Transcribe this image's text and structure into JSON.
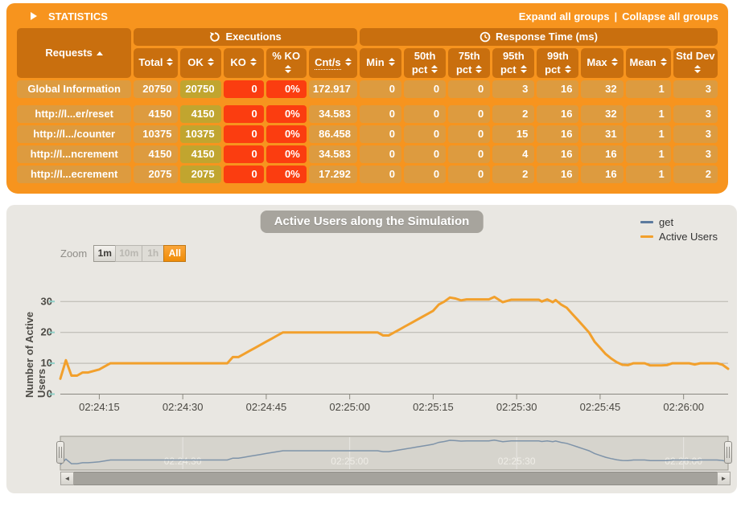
{
  "colors": {
    "panel_orange": "#f7941e",
    "header_cell": "#c96f0e",
    "row_cell": "#dd9b3f",
    "ok_cell": "#c1a52f",
    "ko_cell": "#fb3d10",
    "chart_bg": "#e9e7e2",
    "title_badge": "#a7a49d"
  },
  "icons": {
    "left_arrow": "◄",
    "right_arrow": "►"
  },
  "statistics": {
    "title": "STATISTICS",
    "expand_link": "Expand all groups",
    "link_separator": "|",
    "collapse_link": "Collapse all groups",
    "groups": {
      "executions": "Executions",
      "response_time": "Response Time (ms)"
    },
    "columns": {
      "requests": "Requests",
      "total": "Total",
      "ok": "OK",
      "ko": "KO",
      "pct_ko": "% KO",
      "cnt_s": "Cnt/s",
      "min": "Min",
      "p50": "50th pct",
      "p75": "75th pct",
      "p95": "95th pct",
      "p99": "99th pct",
      "max": "Max",
      "mean": "Mean",
      "std_dev": "Std Dev"
    },
    "rows": [
      {
        "label": "Global Information",
        "values": [
          "20750",
          "20750",
          "0",
          "0%",
          "172.917",
          "0",
          "0",
          "0",
          "3",
          "16",
          "32",
          "1",
          "3"
        ]
      },
      {
        "label": "http://l...er/reset",
        "values": [
          "4150",
          "4150",
          "0",
          "0%",
          "34.583",
          "0",
          "0",
          "0",
          "2",
          "16",
          "32",
          "1",
          "3"
        ]
      },
      {
        "label": "http://l.../counter",
        "values": [
          "10375",
          "10375",
          "0",
          "0%",
          "86.458",
          "0",
          "0",
          "0",
          "15",
          "16",
          "31",
          "1",
          "3"
        ]
      },
      {
        "label": "http://l...ncrement",
        "values": [
          "4150",
          "4150",
          "0",
          "0%",
          "34.583",
          "0",
          "0",
          "0",
          "4",
          "16",
          "16",
          "1",
          "3"
        ]
      },
      {
        "label": "http://l...ecrement",
        "values": [
          "2075",
          "2075",
          "0",
          "0%",
          "17.292",
          "0",
          "0",
          "0",
          "2",
          "16",
          "16",
          "1",
          "2"
        ]
      }
    ]
  },
  "chart": {
    "zoom_label": "Zoom",
    "zoom_buttons": [
      {
        "label": "1m",
        "state": "enabled"
      },
      {
        "label": "10m",
        "state": "disabled"
      },
      {
        "label": "1h",
        "state": "disabled"
      },
      {
        "label": "All",
        "state": "selected"
      }
    ]
  },
  "chart_data": {
    "type": "line",
    "title": "Active Users along the Simulation",
    "xlabel": "",
    "ylabel": "Number of Active Users",
    "x_tick_labels": [
      "02:24:15",
      "02:24:30",
      "02:24:45",
      "02:25:00",
      "02:25:15",
      "02:25:30",
      "02:25:45",
      "02:26:00"
    ],
    "x_tick_seconds": [
      15,
      30,
      45,
      60,
      75,
      90,
      105,
      120
    ],
    "x_domain_seconds": [
      8,
      128
    ],
    "y_ticks": [
      0,
      10,
      20,
      30
    ],
    "ylim": [
      0,
      35
    ],
    "grid": "horizontal",
    "legend_position": "top-right",
    "series": [
      {
        "name": "get",
        "color": "#5c7a9e",
        "points": []
      },
      {
        "name": "Active Users",
        "color": "#f2a02c",
        "points": [
          [
            8,
            5
          ],
          [
            9,
            11
          ],
          [
            10,
            6
          ],
          [
            11,
            6
          ],
          [
            12,
            7
          ],
          [
            13,
            7
          ],
          [
            14,
            7.5
          ],
          [
            15,
            8
          ],
          [
            16,
            9
          ],
          [
            17,
            10
          ],
          [
            20,
            10
          ],
          [
            24,
            10
          ],
          [
            28,
            10
          ],
          [
            32,
            10
          ],
          [
            36,
            10
          ],
          [
            38,
            10
          ],
          [
            39,
            12
          ],
          [
            40,
            12
          ],
          [
            41,
            13
          ],
          [
            42,
            14
          ],
          [
            43,
            15
          ],
          [
            44,
            16
          ],
          [
            45,
            17
          ],
          [
            46,
            18
          ],
          [
            47,
            19
          ],
          [
            48,
            20
          ],
          [
            52,
            20
          ],
          [
            56,
            20
          ],
          [
            60,
            20
          ],
          [
            64,
            20
          ],
          [
            65,
            20
          ],
          [
            66,
            19
          ],
          [
            67,
            19
          ],
          [
            68,
            20
          ],
          [
            69,
            21
          ],
          [
            70,
            22
          ],
          [
            71,
            23
          ],
          [
            72,
            24
          ],
          [
            73,
            25
          ],
          [
            74,
            26
          ],
          [
            75,
            27
          ],
          [
            76,
            29
          ],
          [
            77,
            30
          ],
          [
            78,
            31.3
          ],
          [
            79,
            31
          ],
          [
            80,
            30.4
          ],
          [
            81,
            30.7
          ],
          [
            85,
            30.7
          ],
          [
            86,
            31.5
          ],
          [
            87.5,
            29.8
          ],
          [
            89,
            30.6
          ],
          [
            94,
            30.6
          ],
          [
            94.5,
            30
          ],
          [
            95.5,
            30.7
          ],
          [
            96.5,
            29.8
          ],
          [
            97,
            30.5
          ],
          [
            98,
            29
          ],
          [
            99,
            28
          ],
          [
            100,
            26
          ],
          [
            101,
            24
          ],
          [
            102,
            22
          ],
          [
            103,
            20
          ],
          [
            104,
            17
          ],
          [
            105,
            15
          ],
          [
            106,
            13
          ],
          [
            107,
            11.5
          ],
          [
            108,
            10.3
          ],
          [
            109,
            9.5
          ],
          [
            110,
            9.4
          ],
          [
            111,
            10
          ],
          [
            113,
            10
          ],
          [
            114,
            9.3
          ],
          [
            116,
            9.3
          ],
          [
            117,
            9.4
          ],
          [
            118,
            10
          ],
          [
            121,
            10
          ],
          [
            122,
            9.6
          ],
          [
            123,
            10
          ],
          [
            126,
            10
          ],
          [
            127,
            9.5
          ],
          [
            128,
            8.2
          ]
        ]
      }
    ],
    "navigator_labels": [
      "02:24:30",
      "02:25:00",
      "02:25:30",
      "02:26:00"
    ],
    "navigator_label_seconds": [
      30,
      60,
      90,
      120
    ]
  }
}
